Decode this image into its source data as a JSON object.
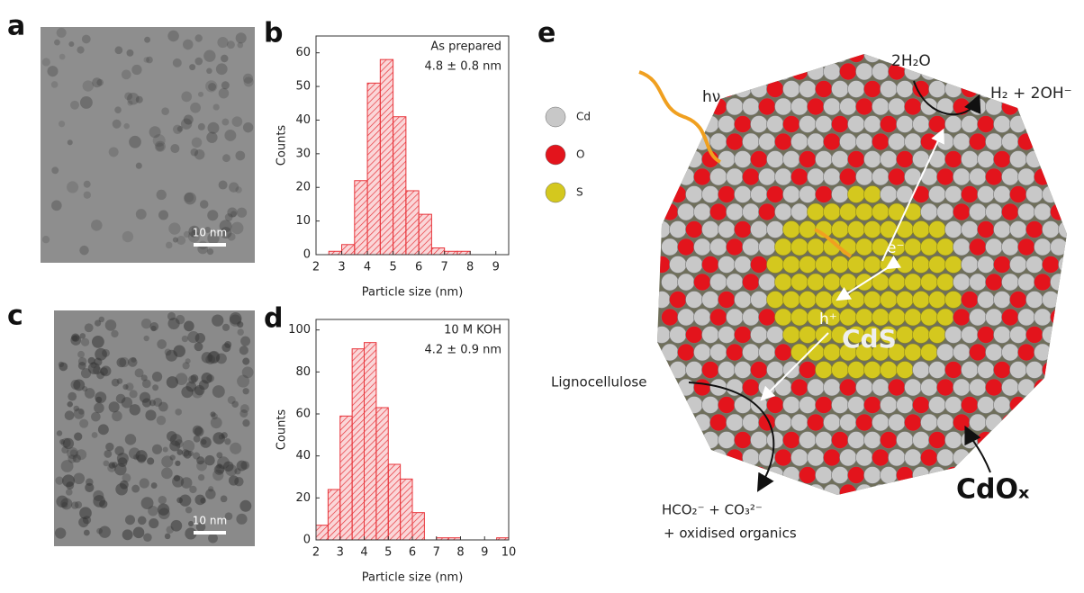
{
  "panel_labels": [
    "a",
    "b",
    "c",
    "d",
    "e"
  ],
  "tem_images": [
    {
      "scale_bar": "10 nm"
    },
    {
      "scale_bar": "10 nm"
    }
  ],
  "chart_data": [
    {
      "type": "histogram",
      "annotations": [
        "As prepared",
        "4.8 ± 0.8 nm"
      ],
      "xlabel": "Particle size (nm)",
      "ylabel": "Counts",
      "bins": [
        2.5,
        3,
        3.5,
        4,
        4.5,
        5,
        5.5,
        6,
        6.5,
        7,
        7.5,
        8
      ],
      "counts": [
        1,
        3,
        22,
        51,
        58,
        41,
        19,
        12,
        2,
        1,
        1
      ],
      "color": "#e8343a",
      "xlim": [
        2,
        9.5
      ],
      "xticks": [
        2,
        3,
        4,
        5,
        6,
        7,
        8,
        9
      ],
      "ylim": [
        0,
        65
      ],
      "yticks": [
        0,
        10,
        20,
        30,
        40,
        50,
        60
      ]
    },
    {
      "type": "histogram",
      "annotations": [
        "10 M KOH",
        "4.2 ± 0.9 nm"
      ],
      "xlabel": "Particle size (nm)",
      "ylabel": "Counts",
      "bins": [
        2,
        2.5,
        3,
        3.5,
        4,
        4.5,
        5,
        5.5,
        6,
        6.5,
        7,
        7.5,
        8,
        8.5,
        9,
        9.5,
        10
      ],
      "counts": [
        7,
        24,
        59,
        91,
        94,
        63,
        36,
        29,
        13,
        0,
        1,
        1,
        0,
        0,
        0,
        1
      ],
      "color": "#e8343a",
      "xlim": [
        2,
        10
      ],
      "xticks": [
        2,
        3,
        4,
        5,
        6,
        7,
        8,
        9,
        10
      ],
      "ylim": [
        0,
        105
      ],
      "yticks": [
        0,
        20,
        40,
        60,
        80,
        100
      ]
    }
  ],
  "diagram": {
    "legend": [
      {
        "label": "Cd",
        "color": "#c8c8c8"
      },
      {
        "label": "O",
        "color": "#e3141c"
      },
      {
        "label": "S",
        "color": "#d4c81e"
      }
    ],
    "light": "hν",
    "water": "2H₂O",
    "products": "H₂ + 2OH⁻",
    "electron": "e⁻",
    "hole": "h⁺",
    "core": "CdS",
    "substrate": "Lignocellulose",
    "oxidation_products": [
      "HCO₂⁻ + CO₃²⁻",
      "+ oxidised organics"
    ],
    "shell": "CdOₓ"
  }
}
